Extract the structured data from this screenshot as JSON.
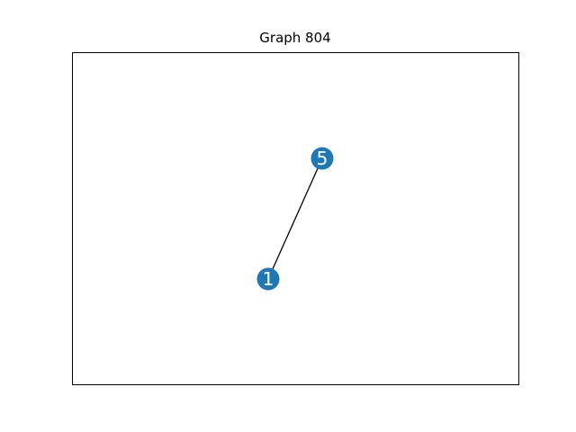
{
  "title": "Graph 804",
  "colors": {
    "node_fill": "#1f77b4",
    "node_label": "#ffffff",
    "edge": "#000000",
    "frame": "#000000"
  },
  "graph": {
    "nodes": [
      {
        "id": "node-1",
        "label": "1"
      },
      {
        "id": "node-5",
        "label": "5"
      }
    ],
    "edges": [
      {
        "from": "node-1",
        "to": "node-5"
      }
    ]
  }
}
